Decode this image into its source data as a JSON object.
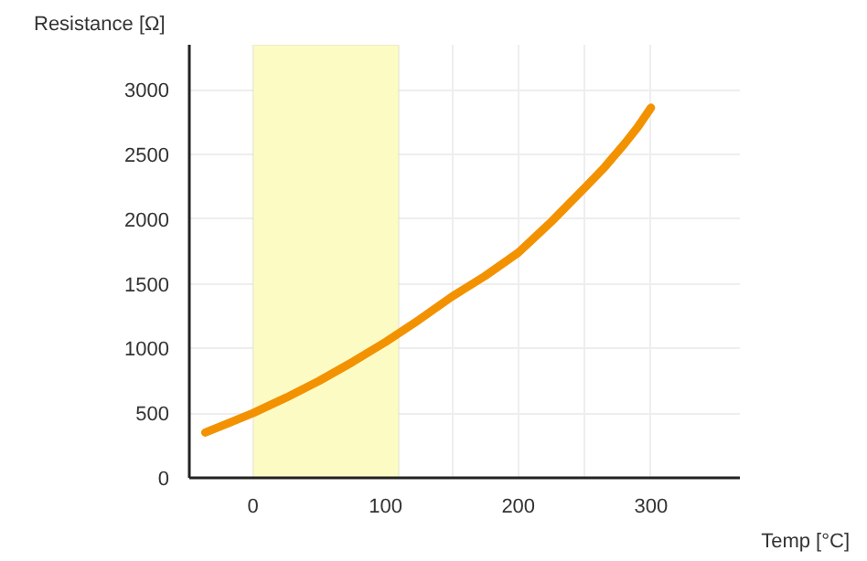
{
  "chart_data": {
    "type": "line",
    "xlabel": "Temp [°C]",
    "ylabel": "Resistance [Ω]",
    "x": [
      -36,
      0,
      25,
      50,
      75,
      100,
      125,
      150,
      175,
      200,
      225,
      250,
      265,
      280,
      290,
      300
    ],
    "series": [
      {
        "color": "#f39200",
        "values": [
          350,
          500,
          620,
          750,
          895,
          1050,
          1220,
          1400,
          1560,
          1740,
          1980,
          2240,
          2400,
          2580,
          2710,
          2860
        ]
      }
    ],
    "xlim": [
      -48,
      367
    ],
    "ylim": [
      0,
      3346
    ],
    "xticks": [
      0,
      {
        "value": 50,
        "label": null
      },
      100,
      {
        "value": 150,
        "label": null
      },
      200,
      {
        "value": 250,
        "label": null
      },
      300
    ],
    "yticks": [
      0,
      500,
      1000,
      1500,
      2000,
      2500,
      3000
    ],
    "bands": [
      {
        "axis": "x",
        "from": 0,
        "to": 110,
        "color": "#fdfbc4"
      }
    ],
    "grid": true,
    "line_style": "solid",
    "marker": "none"
  }
}
